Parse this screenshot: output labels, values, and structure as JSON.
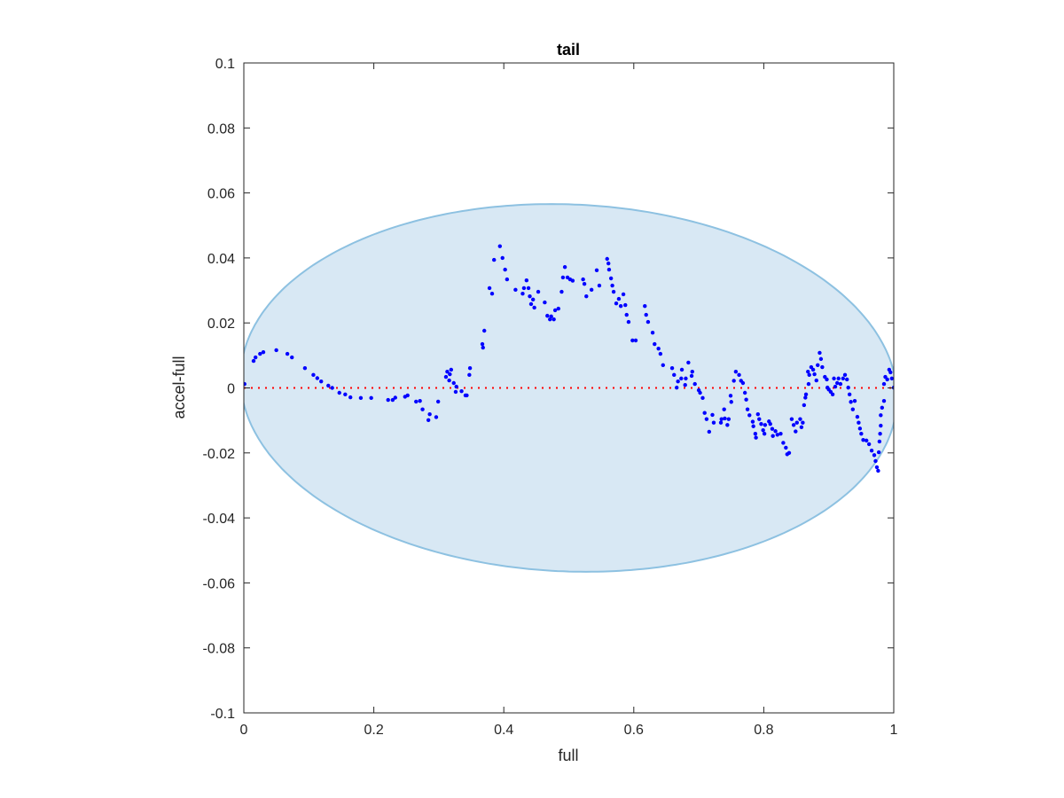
{
  "chart_data": {
    "type": "scatter",
    "title": "tail",
    "xlabel": "full",
    "ylabel": "accel-full",
    "xlim": [
      0,
      1
    ],
    "ylim": [
      -0.1,
      0.1
    ],
    "xticks": [
      0,
      0.2,
      0.4,
      0.6,
      0.8,
      1
    ],
    "xtick_labels": [
      "0",
      "0.2",
      "0.4",
      "0.6",
      "0.8",
      "1"
    ],
    "yticks": [
      -0.1,
      -0.08,
      -0.06,
      -0.04,
      -0.02,
      0,
      0.02,
      0.04,
      0.06,
      0.08,
      0.1
    ],
    "ytick_labels": [
      "-0.1",
      "-0.08",
      "-0.06",
      "-0.04",
      "-0.02",
      "0",
      "0.02",
      "0.04",
      "0.06",
      "0.08",
      "0.1"
    ],
    "grid": false,
    "colors": {
      "points": "#0000ff",
      "zero_line": "#ff0000",
      "ellipse_fill": "#d8e8f4",
      "ellipse_edge": "#8dc1e1"
    },
    "reference_line": {
      "y": 0,
      "style": "dotted"
    },
    "ellipse": {
      "center": [
        0.5,
        0
      ],
      "semi_x": 0.505,
      "semi_y": 0.0565,
      "tilt_y": -0.003
    },
    "points": [
      [
        0.001,
        0.0012
      ],
      [
        0.015,
        0.0083
      ],
      [
        0.018,
        0.0094
      ],
      [
        0.025,
        0.0105
      ],
      [
        0.03,
        0.011
      ],
      [
        0.05,
        0.0116
      ],
      [
        0.067,
        0.0105
      ],
      [
        0.074,
        0.0094
      ],
      [
        0.094,
        0.0061
      ],
      [
        0.107,
        0.004
      ],
      [
        0.113,
        0.003
      ],
      [
        0.119,
        0.002
      ],
      [
        0.13,
        0.0007
      ],
      [
        0.136,
        0
      ],
      [
        0.147,
        -0.0015
      ],
      [
        0.156,
        -0.002
      ],
      [
        0.164,
        -0.0029
      ],
      [
        0.18,
        -0.0031
      ],
      [
        0.196,
        -0.0031
      ],
      [
        0.222,
        -0.0037
      ],
      [
        0.229,
        -0.0037
      ],
      [
        0.233,
        -0.003
      ],
      [
        0.248,
        -0.0027
      ],
      [
        0.252,
        -0.0023
      ],
      [
        0.265,
        -0.0042
      ],
      [
        0.271,
        -0.004
      ],
      [
        0.275,
        -0.0066
      ],
      [
        0.284,
        -0.0099
      ],
      [
        0.286,
        -0.0081
      ],
      [
        0.296,
        -0.009
      ],
      [
        0.299,
        -0.0042
      ],
      [
        0.311,
        0.0034
      ],
      [
        0.313,
        0.005
      ],
      [
        0.319,
        0.0056
      ],
      [
        0.317,
        0.0042
      ],
      [
        0.316,
        0.0023
      ],
      [
        0.323,
        0.0015
      ],
      [
        0.327,
        0.0004
      ],
      [
        0.326,
        -0.0012
      ],
      [
        0.335,
        -0.001
      ],
      [
        0.341,
        -0.0023
      ],
      [
        0.343,
        -0.0023
      ],
      [
        0.347,
        0.004
      ],
      [
        0.348,
        0.0061
      ],
      [
        0.368,
        0.0124
      ],
      [
        0.367,
        0.0135
      ],
      [
        0.37,
        0.0176
      ],
      [
        0.378,
        0.0307
      ],
      [
        0.382,
        0.029
      ],
      [
        0.385,
        0.0394
      ],
      [
        0.394,
        0.0436
      ],
      [
        0.398,
        0.04
      ],
      [
        0.402,
        0.0364
      ],
      [
        0.405,
        0.0334
      ],
      [
        0.418,
        0.0302
      ],
      [
        0.429,
        0.029
      ],
      [
        0.431,
        0.0307
      ],
      [
        0.435,
        0.0331
      ],
      [
        0.438,
        0.0307
      ],
      [
        0.44,
        0.0282
      ],
      [
        0.445,
        0.0272
      ],
      [
        0.442,
        0.0258
      ],
      [
        0.447,
        0.0247
      ],
      [
        0.453,
        0.0296
      ],
      [
        0.463,
        0.0263
      ],
      [
        0.467,
        0.0222
      ],
      [
        0.471,
        0.0211
      ],
      [
        0.473,
        0.022
      ],
      [
        0.477,
        0.0211
      ],
      [
        0.479,
        0.0239
      ],
      [
        0.484,
        0.0244
      ],
      [
        0.489,
        0.0296
      ],
      [
        0.491,
        0.034
      ],
      [
        0.494,
        0.0372
      ],
      [
        0.498,
        0.034
      ],
      [
        0.502,
        0.0334
      ],
      [
        0.506,
        0.033
      ],
      [
        0.522,
        0.0334
      ],
      [
        0.524,
        0.032
      ],
      [
        0.527,
        0.0282
      ],
      [
        0.535,
        0.0302
      ],
      [
        0.543,
        0.0362
      ],
      [
        0.547,
        0.0315
      ],
      [
        0.559,
        0.0397
      ],
      [
        0.561,
        0.0383
      ],
      [
        0.562,
        0.0364
      ],
      [
        0.565,
        0.0337
      ],
      [
        0.567,
        0.0315
      ],
      [
        0.569,
        0.0296
      ],
      [
        0.573,
        0.026
      ],
      [
        0.577,
        0.0274
      ],
      [
        0.58,
        0.0252
      ],
      [
        0.584,
        0.0288
      ],
      [
        0.587,
        0.0255
      ],
      [
        0.589,
        0.0225
      ],
      [
        0.592,
        0.0203
      ],
      [
        0.598,
        0.0146
      ],
      [
        0.603,
        0.0146
      ],
      [
        0.617,
        0.0252
      ],
      [
        0.619,
        0.0225
      ],
      [
        0.622,
        0.0203
      ],
      [
        0.629,
        0.017
      ],
      [
        0.632,
        0.0135
      ],
      [
        0.638,
        0.0121
      ],
      [
        0.641,
        0.0105
      ],
      [
        0.645,
        0.007
      ],
      [
        0.659,
        0.0061
      ],
      [
        0.662,
        0.004
      ],
      [
        0.666,
        0.0001
      ],
      [
        0.668,
        0.002
      ],
      [
        0.673,
        0.0029
      ],
      [
        0.674,
        0.0056
      ],
      [
        0.679,
        0.0009
      ],
      [
        0.68,
        0.0029
      ],
      [
        0.684,
        0.0078
      ],
      [
        0.689,
        0.0037
      ],
      [
        0.69,
        0.005
      ],
      [
        0.694,
        0.0012
      ],
      [
        0.7,
        -0.0007
      ],
      [
        0.702,
        -0.0015
      ],
      [
        0.706,
        -0.0031
      ],
      [
        0.709,
        -0.0077
      ],
      [
        0.712,
        -0.0096
      ],
      [
        0.716,
        -0.0135
      ],
      [
        0.721,
        -0.0083
      ],
      [
        0.723,
        -0.0107
      ],
      [
        0.734,
        -0.0107
      ],
      [
        0.735,
        -0.0096
      ],
      [
        0.739,
        -0.0066
      ],
      [
        0.74,
        -0.0094
      ],
      [
        0.744,
        -0.0114
      ],
      [
        0.746,
        -0.0096
      ],
      [
        0.749,
        -0.0024
      ],
      [
        0.75,
        -0.0043
      ],
      [
        0.754,
        0.0022
      ],
      [
        0.757,
        0.005
      ],
      [
        0.762,
        0.004
      ],
      [
        0.765,
        0.0022
      ],
      [
        0.768,
        0.0015
      ],
      [
        0.771,
        -0.0015
      ],
      [
        0.773,
        -0.0036
      ],
      [
        0.775,
        -0.0066
      ],
      [
        0.778,
        -0.0084
      ],
      [
        0.783,
        -0.0104
      ],
      [
        0.784,
        -0.0118
      ],
      [
        0.787,
        -0.0141
      ],
      [
        0.788,
        -0.0153
      ],
      [
        0.791,
        -0.0081
      ],
      [
        0.793,
        -0.0096
      ],
      [
        0.796,
        -0.0111
      ],
      [
        0.799,
        -0.013
      ],
      [
        0.801,
        -0.0141
      ],
      [
        0.802,
        -0.0114
      ],
      [
        0.808,
        -0.0103
      ],
      [
        0.81,
        -0.0111
      ],
      [
        0.813,
        -0.0126
      ],
      [
        0.814,
        -0.0148
      ],
      [
        0.818,
        -0.0133
      ],
      [
        0.821,
        -0.0144
      ],
      [
        0.826,
        -0.0141
      ],
      [
        0.83,
        -0.0169
      ],
      [
        0.834,
        -0.0184
      ],
      [
        0.836,
        -0.0204
      ],
      [
        0.839,
        -0.02
      ],
      [
        0.843,
        -0.0096
      ],
      [
        0.846,
        -0.0114
      ],
      [
        0.849,
        -0.0134
      ],
      [
        0.851,
        -0.0107
      ],
      [
        0.856,
        -0.0096
      ],
      [
        0.858,
        -0.0121
      ],
      [
        0.86,
        -0.0107
      ],
      [
        0.862,
        -0.0053
      ],
      [
        0.864,
        -0.003
      ],
      [
        0.865,
        -0.002
      ],
      [
        0.869,
        0.0012
      ],
      [
        0.868,
        0.005
      ],
      [
        0.87,
        0.004
      ],
      [
        0.873,
        0.0064
      ],
      [
        0.876,
        0.0056
      ],
      [
        0.878,
        0.0042
      ],
      [
        0.881,
        0.0023
      ],
      [
        0.883,
        0.007
      ],
      [
        0.886,
        0.0108
      ],
      [
        0.888,
        0.0089
      ],
      [
        0.89,
        0.0064
      ],
      [
        0.894,
        0.0034
      ],
      [
        0.897,
        0.0026
      ],
      [
        0.898,
        0.0001
      ],
      [
        0.9,
        -0.0005
      ],
      [
        0.903,
        -0.0012
      ],
      [
        0.906,
        -0.002
      ],
      [
        0.908,
        0.0029
      ],
      [
        0.91,
        0.0004
      ],
      [
        0.913,
        0.0015
      ],
      [
        0.915,
        0.0029
      ],
      [
        0.918,
        0.0012
      ],
      [
        0.922,
        0.0029
      ],
      [
        0.925,
        0.004
      ],
      [
        0.928,
        0.0026
      ],
      [
        0.93,
        0.0001
      ],
      [
        0.932,
        -0.002
      ],
      [
        0.934,
        -0.0043
      ],
      [
        0.937,
        -0.0066
      ],
      [
        0.94,
        -0.004
      ],
      [
        0.944,
        -0.0089
      ],
      [
        0.946,
        -0.0107
      ],
      [
        0.948,
        -0.0125
      ],
      [
        0.95,
        -0.0141
      ],
      [
        0.953,
        -0.016
      ],
      [
        0.958,
        -0.0162
      ],
      [
        0.962,
        -0.0173
      ],
      [
        0.966,
        -0.0193
      ],
      [
        0.97,
        -0.0207
      ],
      [
        0.972,
        -0.0225
      ],
      [
        0.974,
        -0.0244
      ],
      [
        0.976,
        -0.0255
      ],
      [
        0.977,
        -0.0198
      ],
      [
        0.978,
        -0.0165
      ],
      [
        0.979,
        -0.0141
      ],
      [
        0.98,
        -0.0116
      ],
      [
        0.98,
        -0.0084
      ],
      [
        0.982,
        -0.0061
      ],
      [
        0.985,
        -0.004
      ],
      [
        0.985,
        0.0012
      ],
      [
        0.987,
        0.0034
      ],
      [
        0.99,
        0.0026
      ],
      [
        0.993,
        0.0056
      ],
      [
        0.995,
        0.0048
      ],
      [
        0.997,
        0.0029
      ],
      [
        1.0,
        0.0001
      ]
    ]
  }
}
